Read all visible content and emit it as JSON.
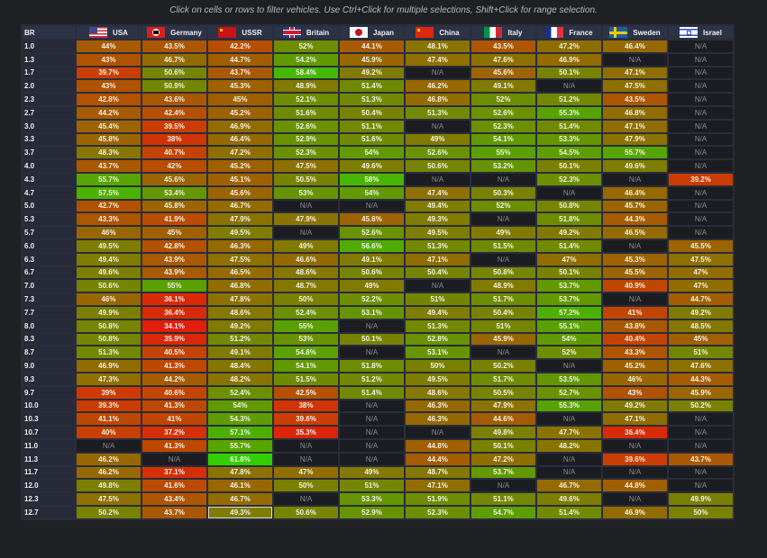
{
  "hint": "Click on cells or rows to filter vehicles. Use Ctrl+Click for multiple selections, Shift+Click for range selection.",
  "header": {
    "br_label": "BR"
  },
  "nations": [
    {
      "name": "USA",
      "flag": "f-usa",
      "icon": "usa-flag-icon"
    },
    {
      "name": "Germany",
      "flag": "f-ger",
      "icon": "germany-flag-icon"
    },
    {
      "name": "USSR",
      "flag": "f-ussr",
      "icon": "ussr-flag-icon"
    },
    {
      "name": "Britain",
      "flag": "f-gb",
      "icon": "britain-flag-icon"
    },
    {
      "name": "Japan",
      "flag": "f-jp",
      "icon": "japan-flag-icon"
    },
    {
      "name": "China",
      "flag": "f-cn",
      "icon": "china-flag-icon"
    },
    {
      "name": "Italy",
      "flag": "f-it",
      "icon": "italy-flag-icon"
    },
    {
      "name": "France",
      "flag": "f-fr",
      "icon": "france-flag-icon"
    },
    {
      "name": "Sweden",
      "flag": "f-se",
      "icon": "sweden-flag-icon"
    },
    {
      "name": "Israel",
      "flag": "f-il",
      "icon": "israel-flag-icon"
    }
  ],
  "selected_cell": {
    "br": "12.7",
    "nation": "USSR"
  },
  "rows": [
    {
      "br": "1.0",
      "values": [
        "44%",
        "43.5%",
        "42.2%",
        "52%",
        "44.1%",
        "48.1%",
        "43.5%",
        "47.2%",
        "46.4%",
        "N/A"
      ]
    },
    {
      "br": "1.3",
      "values": [
        "43%",
        "46.7%",
        "44.7%",
        "54.2%",
        "45.9%",
        "47.4%",
        "47.6%",
        "46.9%",
        "N/A",
        "N/A"
      ]
    },
    {
      "br": "1.7",
      "values": [
        "39.7%",
        "50.6%",
        "43.7%",
        "58.4%",
        "49.2%",
        "N/A",
        "45.6%",
        "50.1%",
        "47.1%",
        "N/A"
      ]
    },
    {
      "br": "2.0",
      "values": [
        "43%",
        "50.9%",
        "45.3%",
        "48.9%",
        "51.4%",
        "46.2%",
        "49.1%",
        "N/A",
        "47.5%",
        "N/A"
      ]
    },
    {
      "br": "2.3",
      "values": [
        "42.8%",
        "43.6%",
        "45%",
        "52.1%",
        "51.3%",
        "46.8%",
        "52%",
        "51.2%",
        "43.5%",
        "N/A"
      ]
    },
    {
      "br": "2.7",
      "values": [
        "44.2%",
        "42.4%",
        "45.2%",
        "51.6%",
        "50.4%",
        "51.3%",
        "52.6%",
        "55.3%",
        "46.8%",
        "N/A"
      ]
    },
    {
      "br": "3.0",
      "values": [
        "45.4%",
        "39.5%",
        "46.9%",
        "52.6%",
        "51.1%",
        "N/A",
        "52.3%",
        "51.4%",
        "47.1%",
        "N/A"
      ]
    },
    {
      "br": "3.3",
      "values": [
        "45.8%",
        "38%",
        "46.4%",
        "52.9%",
        "51.6%",
        "49%",
        "54.1%",
        "53.3%",
        "47.9%",
        "N/A"
      ]
    },
    {
      "br": "3.7",
      "values": [
        "48.3%",
        "40.7%",
        "47.2%",
        "52.3%",
        "54%",
        "52.6%",
        "55%",
        "54.5%",
        "55.7%",
        "N/A"
      ]
    },
    {
      "br": "4.0",
      "values": [
        "43.7%",
        "42%",
        "45.2%",
        "47.5%",
        "49.6%",
        "50.6%",
        "53.2%",
        "50.1%",
        "49.6%",
        "N/A"
      ]
    },
    {
      "br": "4.3",
      "values": [
        "55.7%",
        "45.6%",
        "45.1%",
        "50.5%",
        "58%",
        "N/A",
        "N/A",
        "52.3%",
        "N/A",
        "39.2%"
      ]
    },
    {
      "br": "4.7",
      "values": [
        "57.5%",
        "53.4%",
        "45.6%",
        "53%",
        "54%",
        "47.4%",
        "50.3%",
        "N/A",
        "46.4%",
        "N/A"
      ]
    },
    {
      "br": "5.0",
      "values": [
        "42.7%",
        "45.8%",
        "46.7%",
        "N/A",
        "N/A",
        "49.4%",
        "52%",
        "50.8%",
        "45.7%",
        "N/A"
      ]
    },
    {
      "br": "5.3",
      "values": [
        "43.3%",
        "41.9%",
        "47.9%",
        "47.9%",
        "45.6%",
        "49.3%",
        "N/A",
        "51.8%",
        "44.3%",
        "N/A"
      ]
    },
    {
      "br": "5.7",
      "values": [
        "46%",
        "45%",
        "49.5%",
        "N/A",
        "52.6%",
        "49.5%",
        "49%",
        "49.2%",
        "46.5%",
        "N/A"
      ]
    },
    {
      "br": "6.0",
      "values": [
        "49.5%",
        "42.8%",
        "46.3%",
        "49%",
        "56.6%",
        "51.3%",
        "51.5%",
        "51.4%",
        "N/A",
        "45.5%"
      ]
    },
    {
      "br": "6.3",
      "values": [
        "49.4%",
        "43.9%",
        "47.5%",
        "46.6%",
        "49.1%",
        "47.1%",
        "N/A",
        "47%",
        "45.3%",
        "47.5%"
      ]
    },
    {
      "br": "6.7",
      "values": [
        "49.6%",
        "43.9%",
        "46.5%",
        "48.6%",
        "50.6%",
        "50.4%",
        "50.8%",
        "50.1%",
        "45.5%",
        "47%"
      ]
    },
    {
      "br": "7.0",
      "values": [
        "50.6%",
        "55%",
        "46.8%",
        "48.7%",
        "49%",
        "N/A",
        "48.9%",
        "53.7%",
        "40.9%",
        "47%"
      ]
    },
    {
      "br": "7.3",
      "values": [
        "46%",
        "36.1%",
        "47.8%",
        "50%",
        "52.2%",
        "51%",
        "51.7%",
        "53.7%",
        "N/A",
        "44.7%"
      ]
    },
    {
      "br": "7.7",
      "values": [
        "49.9%",
        "36.4%",
        "48.6%",
        "52.4%",
        "53.1%",
        "49.4%",
        "50.4%",
        "57.2%",
        "41%",
        "49.2%"
      ]
    },
    {
      "br": "8.0",
      "values": [
        "50.8%",
        "34.1%",
        "49.2%",
        "55%",
        "N/A",
        "51.3%",
        "51%",
        "55.1%",
        "43.8%",
        "48.5%"
      ]
    },
    {
      "br": "8.3",
      "values": [
        "50.8%",
        "35.9%",
        "51.2%",
        "53%",
        "50.1%",
        "52.8%",
        "45.9%",
        "54%",
        "40.4%",
        "45%"
      ]
    },
    {
      "br": "8.7",
      "values": [
        "51.3%",
        "40.5%",
        "49.1%",
        "54.8%",
        "N/A",
        "53.1%",
        "N/A",
        "52%",
        "43.3%",
        "51%"
      ]
    },
    {
      "br": "9.0",
      "values": [
        "46.9%",
        "41.3%",
        "48.4%",
        "54.1%",
        "51.8%",
        "50%",
        "50.2%",
        "N/A",
        "45.2%",
        "47.6%"
      ]
    },
    {
      "br": "9.3",
      "values": [
        "47.3%",
        "44.2%",
        "48.2%",
        "51.5%",
        "51.2%",
        "49.5%",
        "51.7%",
        "53.5%",
        "46%",
        "44.3%"
      ]
    },
    {
      "br": "9.7",
      "values": [
        "39%",
        "40.6%",
        "52.4%",
        "42.5%",
        "51.4%",
        "48.6%",
        "50.5%",
        "52.7%",
        "43%",
        "45.9%"
      ]
    },
    {
      "br": "10.0",
      "values": [
        "39.3%",
        "41.3%",
        "54%",
        "38%",
        "N/A",
        "46.3%",
        "47.9%",
        "55.3%",
        "49.2%",
        "50.2%"
      ]
    },
    {
      "br": "10.3",
      "values": [
        "41.1%",
        "41%",
        "54.3%",
        "39.6%",
        "N/A",
        "46.3%",
        "44.6%",
        "N/A",
        "47.1%",
        "N/A"
      ]
    },
    {
      "br": "10.7",
      "values": [
        "40%",
        "37.2%",
        "57.1%",
        "35.3%",
        "N/A",
        "N/A",
        "49.8%",
        "47.7%",
        "36.4%",
        "N/A"
      ]
    },
    {
      "br": "11.0",
      "values": [
        "N/A",
        "41.3%",
        "55.7%",
        "N/A",
        "N/A",
        "44.8%",
        "50.1%",
        "48.2%",
        "N/A",
        "N/A"
      ]
    },
    {
      "br": "11.3",
      "values": [
        "46.2%",
        "N/A",
        "61.8%",
        "N/A",
        "N/A",
        "44.4%",
        "47.2%",
        "N/A",
        "39.6%",
        "43.7%"
      ]
    },
    {
      "br": "11.7",
      "values": [
        "46.2%",
        "37.1%",
        "47.8%",
        "47%",
        "49%",
        "48.7%",
        "53.7%",
        "N/A",
        "N/A",
        "N/A"
      ]
    },
    {
      "br": "12.0",
      "values": [
        "49.8%",
        "41.6%",
        "46.1%",
        "50%",
        "51%",
        "47.1%",
        "N/A",
        "46.7%",
        "44.8%",
        "N/A"
      ]
    },
    {
      "br": "12.3",
      "values": [
        "47.5%",
        "43.4%",
        "46.7%",
        "N/A",
        "53.3%",
        "51.9%",
        "51.1%",
        "49.6%",
        "N/A",
        "49.9%"
      ]
    },
    {
      "br": "12.7",
      "values": [
        "50.2%",
        "43.7%",
        "49.3%",
        "50.6%",
        "52.9%",
        "52.3%",
        "54.7%",
        "51.4%",
        "46.9%",
        "50%"
      ]
    }
  ]
}
